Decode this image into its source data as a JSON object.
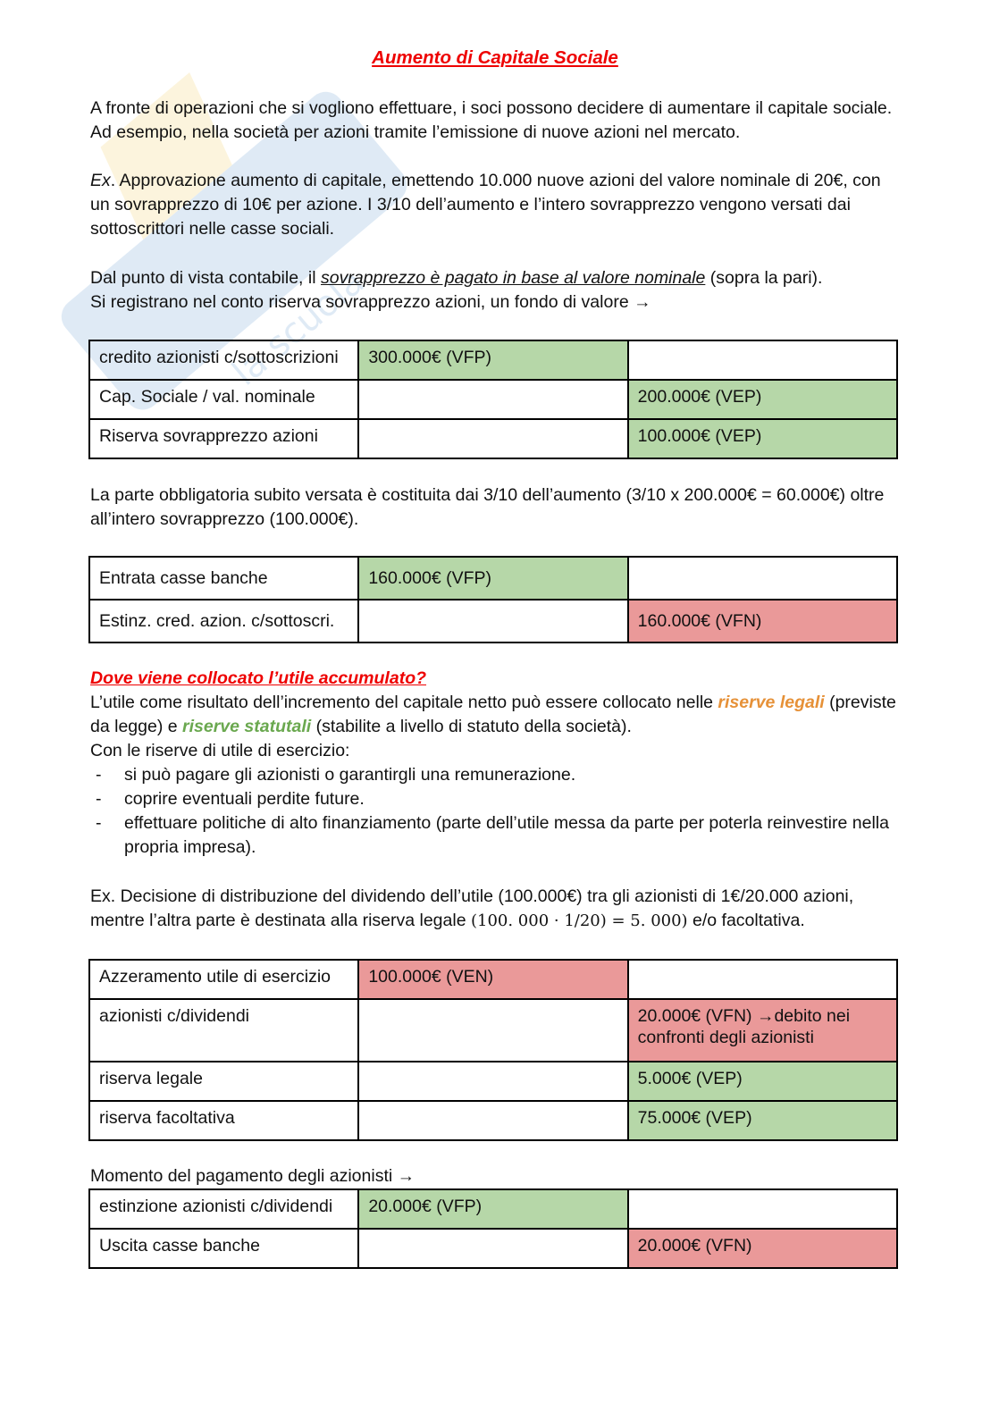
{
  "title": "Aumento di Capitale Sociale",
  "watermark": "Skuola.net",
  "intro": "A fronte di operazioni che si vogliono effettuare, i soci possono decidere di aumentare il capitale sociale. Ad esempio, nella società per azioni tramite l’emissione di nuove azioni nel mercato.",
  "example1": {
    "prefix": "Ex",
    "text": ". Approvazione aumento di capitale, emettendo 10.000 nuove azioni del valore nominale di 20€, con un sovrapprezzo di 10€ per azione. I 3/10 dell’aumento e l’intero sovrapprezzo vengono versati dai sottoscrittori nelle casse sociali."
  },
  "accounting": {
    "before": "Dal punto di vista contabile, il ",
    "underlined": "sovrapprezzo è pagato in base al valore nominale",
    "after": " (sopra la pari).",
    "line2": "Si registrano nel conto riserva sovrapprezzo azioni, un fondo di valore →"
  },
  "table1": [
    [
      "credito azionisti c/sottoscrizioni",
      "300.000€ (VFP)",
      ""
    ],
    [
      "Cap. Sociale / val. nominale",
      "",
      "200.000€ (VEP)"
    ],
    [
      "Riserva sovrapprezzo azioni",
      "",
      "100.000€ (VEP)"
    ]
  ],
  "mandatory": "La parte obbligatoria subito versata è costituita dai 3/10 dell’aumento (3/10 x 200.000€ = 60.000€) oltre all’intero sovrapprezzo (100.000€).",
  "table2": [
    [
      "Entrata casse banche",
      "160.000€ (VFP)",
      ""
    ],
    [
      "Estinz. cred. azion. c/sottoscri.",
      "",
      "160.000€ (VFN)"
    ]
  ],
  "question": "Dove viene collocato l’utile accumulato?",
  "profit": {
    "p1": "L’utile come risultato dell’incremento del capitale netto può essere collocato nelle ",
    "legal": "riserve legali",
    "p2": " (previste da legge) e ",
    "statutory": "riserve statutali",
    "p3": " (stabilite a livello di statuto della società).",
    "p4": "Con le riserve di utile di esercizio:"
  },
  "bullets": [
    "si può pagare gli azionisti o garantirgli una remunerazione.",
    "coprire eventuali perdite future.",
    "effettuare politiche di alto finanziamento (parte dell’utile messa da parte per poterla reinvestire nella propria impresa)."
  ],
  "example2": {
    "line1": "Ex. Decisione di distribuzione del dividendo dell’utile (100.000€) tra gli azionisti di 1€/20.000 azioni,",
    "line2a": "mentre l’altra parte è destinata alla riserva legale ",
    "formula": "(100. 000 · 1/20) = 5. 000)",
    "line2b": " e/o facoltativa."
  },
  "table3": [
    [
      "Azzeramento utile di esercizio",
      "100.000€ (VEN)",
      ""
    ],
    [
      "azionisti c/dividendi",
      "",
      "20.000€ (VFN) →debito nei confronti degli azionisti"
    ],
    [
      "riserva legale",
      "",
      "5.000€ (VEP)"
    ],
    [
      "riserva facoltativa",
      "",
      "75.000€ (VEP)"
    ]
  ],
  "payment": "Momento del pagamento degli azionisti →",
  "table4": [
    [
      "estinzione azionisti c/dividendi",
      "20.000€ (VFP)",
      ""
    ],
    [
      "Uscita casse banche",
      "",
      "20.000€ (VFN)"
    ]
  ],
  "colors": {
    "green": "#b6d7a8",
    "red": "#ea9999",
    "heading": "#ee0000",
    "orange": "#e69138",
    "greenText": "#6aa84f"
  },
  "cell_colors": {
    "table1": [
      [
        "",
        "green",
        ""
      ],
      [
        "",
        "",
        "green"
      ],
      [
        "",
        "",
        "green"
      ]
    ],
    "table2": [
      [
        "",
        "green",
        ""
      ],
      [
        "",
        "",
        "red"
      ]
    ],
    "table3": [
      [
        "",
        "red",
        ""
      ],
      [
        "",
        "",
        "red"
      ],
      [
        "",
        "",
        "green"
      ],
      [
        "",
        "",
        "green"
      ]
    ],
    "table4": [
      [
        "",
        "green",
        ""
      ],
      [
        "",
        "",
        "red"
      ]
    ]
  }
}
